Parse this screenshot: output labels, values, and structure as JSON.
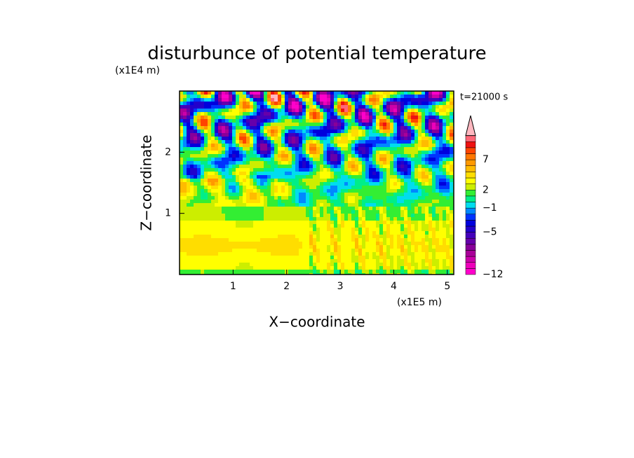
{
  "chart_data": {
    "type": "contour",
    "title": "disturbunce of potential temperature",
    "x_label": "X−coordinate",
    "y_label": "Z−coordinate",
    "x_unit": "(x1E5 m)",
    "y_unit": "(x1E4 m)",
    "time_label": "t=21000 s",
    "xlim": [
      0,
      5.12
    ],
    "ylim": [
      0,
      3
    ],
    "xticks": [
      1,
      2,
      3,
      4,
      5
    ],
    "yticks": [
      1,
      2
    ],
    "colorbar": {
      "levels": [
        -12,
        -11,
        -10,
        -9,
        -8,
        -7,
        -6,
        -5,
        -4,
        -3,
        -2,
        -1,
        0,
        1,
        2,
        3,
        4,
        5,
        6,
        7,
        8,
        9,
        10,
        11,
        12
      ],
      "colors": [
        "#ff00cc",
        "#ee00bb",
        "#cc00aa",
        "#aa0099",
        "#880099",
        "#6600aa",
        "#4400bb",
        "#2200cc",
        "#0000dd",
        "#0033ff",
        "#0088ff",
        "#00ddee",
        "#00ee88",
        "#33ee33",
        "#ccee00",
        "#ffff00",
        "#ffdd00",
        "#ffbb00",
        "#ff9900",
        "#ff7700",
        "#ff4400",
        "#ee1111",
        "#ff6677",
        "#ffb8c0"
      ],
      "ticks": [
        {
          "value": -12,
          "label": "−12"
        },
        {
          "value": -5,
          "label": "−5"
        },
        {
          "value": -1,
          "label": "−1"
        },
        2,
        7
      ]
    }
  }
}
